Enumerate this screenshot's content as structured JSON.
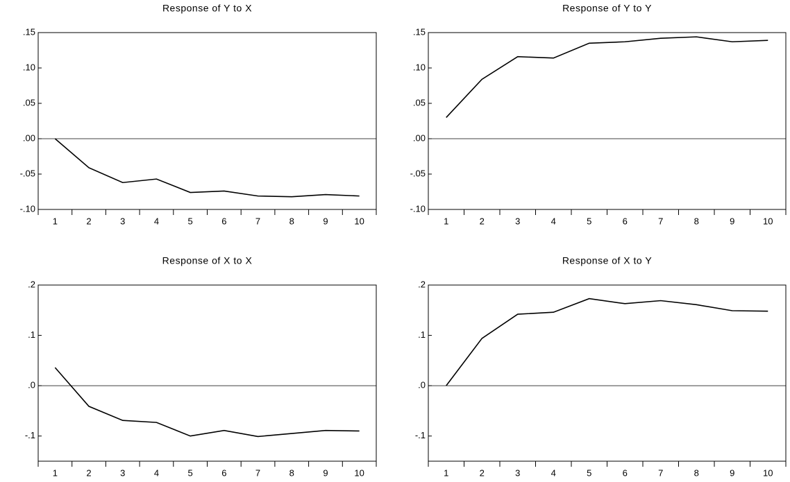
{
  "chart_data": [
    {
      "type": "line",
      "title": "Response of Y to X",
      "categories": [
        "1",
        "2",
        "3",
        "4",
        "5",
        "6",
        "7",
        "8",
        "9",
        "10"
      ],
      "series": [
        {
          "color": "#000000",
          "values": [
            0.0,
            -0.041,
            -0.062,
            -0.057,
            -0.076,
            -0.074,
            -0.081,
            -0.082,
            -0.079,
            -0.081
          ]
        }
      ],
      "ylim": [
        -0.1,
        0.15
      ],
      "yticks": [
        {
          "value": 0.15,
          "label": ".15"
        },
        {
          "value": 0.1,
          "label": ".10"
        },
        {
          "value": 0.05,
          "label": ".05"
        },
        {
          "value": 0,
          "label": ".00"
        },
        {
          "value": -0.05,
          "label": "-.05"
        },
        {
          "value": -0.1,
          "label": "-.10"
        }
      ],
      "zero_line": true
    },
    {
      "type": "line",
      "title": "Response of Y to Y",
      "categories": [
        "1",
        "2",
        "3",
        "4",
        "5",
        "6",
        "7",
        "8",
        "9",
        "10"
      ],
      "series": [
        {
          "color": "#000000",
          "values": [
            0.03,
            0.084,
            0.116,
            0.114,
            0.135,
            0.137,
            0.142,
            0.144,
            0.137,
            0.139
          ]
        }
      ],
      "ylim": [
        -0.1,
        0.15
      ],
      "yticks": [
        {
          "value": 0.15,
          "label": ".15"
        },
        {
          "value": 0.1,
          "label": ".10"
        },
        {
          "value": 0.05,
          "label": ".05"
        },
        {
          "value": 0,
          "label": ".00"
        },
        {
          "value": -0.05,
          "label": "-.05"
        },
        {
          "value": -0.1,
          "label": "-.10"
        }
      ],
      "zero_line": true
    },
    {
      "type": "line",
      "title": "Response of X to X",
      "categories": [
        "1",
        "2",
        "3",
        "4",
        "5",
        "6",
        "7",
        "8",
        "9",
        "10"
      ],
      "series": [
        {
          "color": "#000000",
          "values": [
            0.036,
            -0.041,
            -0.069,
            -0.073,
            -0.1,
            -0.089,
            -0.101,
            -0.095,
            -0.089,
            -0.09
          ]
        }
      ],
      "ylim": [
        -0.15,
        0.2
      ],
      "yticks": [
        {
          "value": 0.2,
          "label": ".2"
        },
        {
          "value": 0.1,
          "label": ".1"
        },
        {
          "value": 0,
          "label": ".0"
        },
        {
          "value": -0.1,
          "label": "-.1"
        }
      ],
      "zero_line": true
    },
    {
      "type": "line",
      "title": "Response of X to Y",
      "categories": [
        "1",
        "2",
        "3",
        "4",
        "5",
        "6",
        "7",
        "8",
        "9",
        "10"
      ],
      "series": [
        {
          "color": "#000000",
          "values": [
            0.0,
            0.094,
            0.142,
            0.146,
            0.173,
            0.163,
            0.169,
            0.161,
            0.149,
            0.148
          ]
        }
      ],
      "ylim": [
        -0.15,
        0.2
      ],
      "yticks": [
        {
          "value": 0.2,
          "label": ".2"
        },
        {
          "value": 0.1,
          "label": ".1"
        },
        {
          "value": 0,
          "label": ".0"
        },
        {
          "value": -0.1,
          "label": "-.1"
        }
      ],
      "zero_line": true
    }
  ]
}
